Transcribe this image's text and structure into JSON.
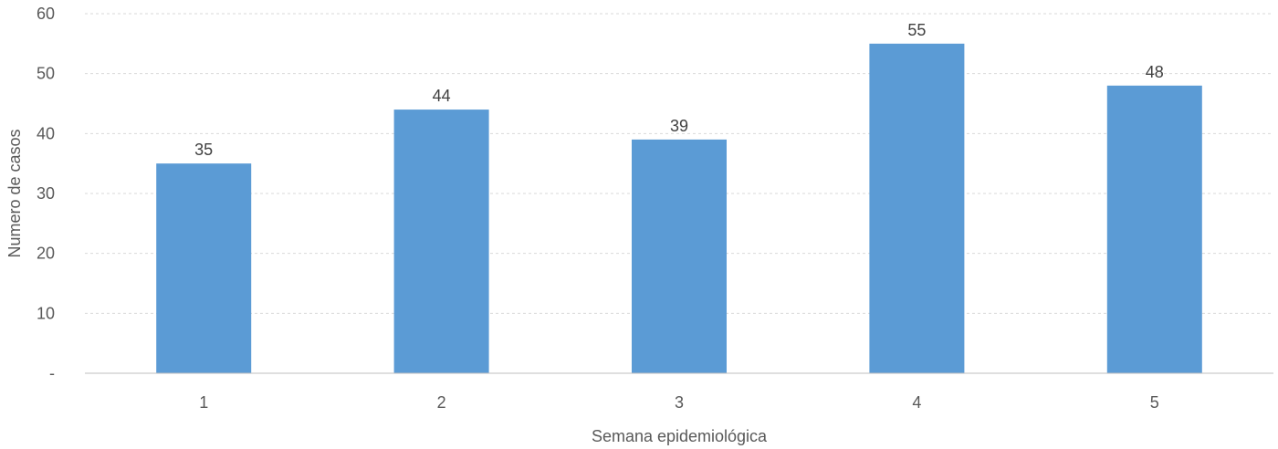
{
  "chart_data": {
    "type": "bar",
    "categories": [
      "1",
      "2",
      "3",
      "4",
      "5"
    ],
    "values": [
      35,
      44,
      39,
      55,
      48
    ],
    "data_labels": [
      "35",
      "44",
      "39",
      "55",
      "48"
    ],
    "xlabel": "Semana epidemiológica",
    "ylabel": "Numero de casos",
    "ylim": [
      0,
      60
    ],
    "y_ticks": [
      0,
      10,
      20,
      30,
      40,
      50,
      60
    ],
    "y_tick_labels": [
      "-",
      "10",
      "20",
      "30",
      "40",
      "50",
      "60"
    ],
    "grid": true,
    "legend": "none",
    "colors": {
      "bar": "#5b9bd5"
    }
  }
}
